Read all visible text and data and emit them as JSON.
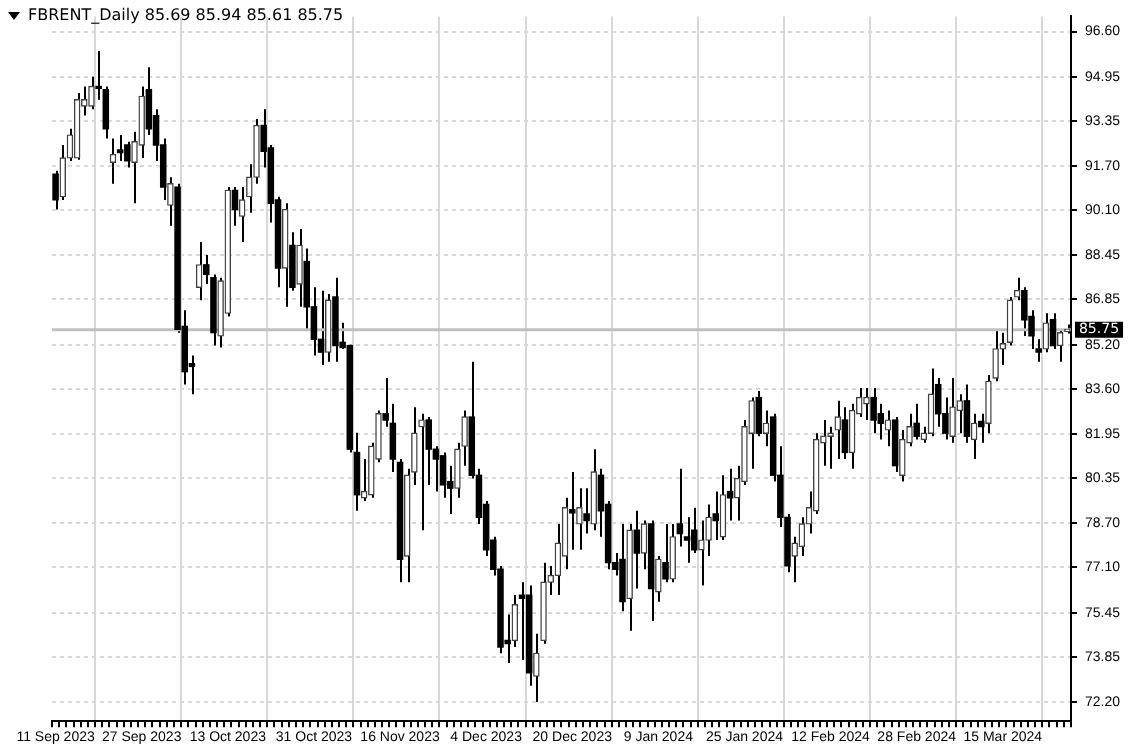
{
  "chart_data": {
    "type": "candlestick",
    "title": "FBRENT_Daily 85.69 85.94 85.61 85.75",
    "categories": [
      "11 Sep 2023",
      null,
      null,
      null,
      null,
      null,
      null,
      null,
      null,
      null,
      null,
      null,
      "27 Sep 2023",
      null,
      null,
      null,
      null,
      null,
      null,
      null,
      null,
      null,
      null,
      null,
      "13 Oct 2023",
      null,
      null,
      null,
      null,
      null,
      null,
      null,
      null,
      null,
      null,
      null,
      "31 Oct 2023",
      null,
      null,
      null,
      null,
      null,
      null,
      null,
      null,
      null,
      null,
      null,
      "16 Nov 2023",
      null,
      null,
      null,
      null,
      null,
      null,
      null,
      null,
      null,
      null,
      null,
      "4 Dec 2023",
      null,
      null,
      null,
      null,
      null,
      null,
      null,
      null,
      null,
      null,
      null,
      "20 Dec 2023",
      null,
      null,
      null,
      null,
      null,
      null,
      null,
      null,
      null,
      null,
      null,
      "9 Jan 2024",
      null,
      null,
      null,
      null,
      null,
      null,
      null,
      null,
      null,
      null,
      null,
      "25 Jan 2024",
      null,
      null,
      null,
      null,
      null,
      null,
      null,
      null,
      null,
      null,
      null,
      "12 Feb 2024",
      null,
      null,
      null,
      null,
      null,
      null,
      null,
      null,
      null,
      null,
      null,
      "28 Feb 2024",
      null,
      null,
      null,
      null,
      null,
      null,
      null,
      null,
      null,
      null,
      null,
      "15 Mar 2024",
      null,
      null,
      null,
      null,
      null,
      null,
      null,
      null,
      null
    ],
    "ohlc": [
      [
        91.41,
        91.53,
        90.12,
        90.47
      ],
      [
        90.59,
        92.47,
        90.47,
        92.0
      ],
      [
        92.0,
        93.06,
        91.89,
        92.83
      ],
      [
        92.0,
        94.36,
        91.93,
        94.12
      ],
      [
        93.89,
        94.6,
        93.54,
        94.12
      ],
      [
        93.89,
        94.95,
        93.77,
        94.6
      ],
      [
        94.6,
        95.89,
        94.12,
        94.53
      ],
      [
        94.48,
        94.6,
        92.71,
        93.06
      ],
      [
        91.84,
        92.71,
        91.06,
        92.12
      ],
      [
        92.29,
        92.83,
        91.89,
        92.19
      ],
      [
        92.47,
        92.59,
        91.65,
        91.89
      ],
      [
        91.84,
        92.95,
        90.35,
        92.59
      ],
      [
        92.47,
        94.6,
        92.0,
        94.24
      ],
      [
        94.48,
        95.3,
        92.83,
        93.06
      ],
      [
        93.54,
        93.77,
        91.89,
        92.47
      ],
      [
        92.47,
        92.71,
        90.47,
        90.94
      ],
      [
        90.28,
        91.3,
        89.53,
        91.06
      ],
      [
        90.94,
        91.06,
        85.64,
        85.76
      ],
      [
        85.87,
        86.46,
        83.75,
        84.22
      ],
      [
        84.51,
        84.81,
        83.4,
        84.41
      ],
      [
        87.29,
        88.94,
        86.82,
        88.11
      ],
      [
        88.11,
        88.47,
        87.41,
        87.76
      ],
      [
        87.64,
        87.76,
        85.17,
        85.64
      ],
      [
        85.52,
        87.64,
        85.1,
        87.52
      ],
      [
        86.35,
        90.94,
        86.23,
        90.82
      ],
      [
        90.82,
        90.94,
        89.53,
        90.12
      ],
      [
        89.88,
        90.94,
        88.94,
        90.47
      ],
      [
        90.59,
        91.77,
        90.0,
        91.3
      ],
      [
        91.3,
        93.42,
        91.06,
        93.18
      ],
      [
        93.18,
        93.77,
        91.65,
        92.24
      ],
      [
        92.36,
        92.47,
        89.65,
        90.35
      ],
      [
        90.47,
        90.59,
        87.29,
        87.99
      ],
      [
        87.99,
        90.35,
        86.58,
        90.12
      ],
      [
        88.82,
        89.29,
        87.17,
        87.29
      ],
      [
        87.41,
        89.41,
        86.58,
        88.82
      ],
      [
        88.23,
        88.7,
        85.76,
        86.58
      ],
      [
        86.58,
        87.29,
        84.81,
        85.4
      ],
      [
        85.4,
        87.17,
        84.46,
        84.93
      ],
      [
        84.93,
        87.05,
        84.58,
        86.82
      ],
      [
        86.94,
        87.64,
        84.58,
        85.17
      ],
      [
        85.29,
        86.0,
        85.05,
        85.1
      ],
      [
        85.17,
        85.2,
        81.28,
        81.4
      ],
      [
        81.28,
        82.0,
        79.16,
        79.74
      ],
      [
        79.63,
        81.04,
        79.51,
        79.86
      ],
      [
        79.74,
        81.63,
        79.63,
        81.51
      ],
      [
        81.04,
        82.81,
        80.92,
        82.69
      ],
      [
        82.69,
        83.99,
        82.22,
        82.46
      ],
      [
        82.34,
        83.05,
        80.57,
        81.04
      ],
      [
        80.92,
        81.04,
        76.56,
        77.39
      ],
      [
        77.51,
        80.69,
        76.56,
        80.45
      ],
      [
        80.57,
        82.93,
        80.1,
        81.98
      ],
      [
        82.22,
        82.69,
        78.45,
        82.46
      ],
      [
        82.46,
        82.57,
        80.1,
        81.4
      ],
      [
        81.4,
        81.51,
        79.86,
        81.04
      ],
      [
        81.16,
        81.28,
        79.63,
        80.1
      ],
      [
        80.22,
        80.8,
        79.04,
        79.98
      ],
      [
        79.98,
        81.63,
        79.63,
        81.4
      ],
      [
        81.51,
        82.81,
        80.8,
        82.57
      ],
      [
        82.57,
        84.58,
        80.33,
        80.45
      ],
      [
        80.45,
        80.69,
        78.68,
        78.92
      ],
      [
        79.39,
        79.51,
        77.51,
        77.74
      ],
      [
        78.09,
        78.21,
        76.8,
        77.03
      ],
      [
        77.03,
        77.15,
        73.97,
        74.2
      ],
      [
        74.44,
        75.38,
        73.62,
        74.32
      ],
      [
        74.44,
        76.09,
        74.2,
        75.74
      ],
      [
        76.09,
        76.56,
        73.73,
        75.97
      ],
      [
        76.09,
        76.44,
        72.79,
        73.26
      ],
      [
        73.14,
        74.68,
        72.2,
        73.97
      ],
      [
        74.44,
        77.27,
        74.32,
        76.56
      ],
      [
        76.56,
        77.15,
        76.09,
        76.8
      ],
      [
        76.8,
        78.68,
        76.09,
        77.98
      ],
      [
        77.51,
        79.63,
        77.03,
        79.27
      ],
      [
        79.2,
        80.57,
        77.74,
        79.08
      ],
      [
        78.68,
        79.98,
        77.74,
        79.27
      ],
      [
        79.04,
        79.98,
        78.33,
        78.8
      ],
      [
        78.68,
        81.4,
        78.45,
        80.57
      ],
      [
        80.45,
        80.69,
        78.21,
        79.16
      ],
      [
        79.39,
        79.51,
        77.03,
        77.27
      ],
      [
        77.27,
        77.62,
        76.8,
        77.03
      ],
      [
        77.39,
        78.68,
        75.5,
        75.85
      ],
      [
        75.97,
        78.68,
        74.79,
        78.45
      ],
      [
        78.45,
        79.16,
        76.33,
        77.62
      ],
      [
        77.62,
        78.8,
        77.03,
        78.68
      ],
      [
        78.68,
        78.8,
        75.15,
        76.33
      ],
      [
        76.21,
        77.51,
        75.85,
        77.39
      ],
      [
        77.27,
        78.68,
        76.56,
        76.68
      ],
      [
        76.68,
        78.68,
        76.56,
        78.21
      ],
      [
        78.68,
        80.69,
        77.86,
        78.33
      ],
      [
        78.21,
        78.92,
        77.27,
        78.09
      ],
      [
        78.45,
        79.27,
        77.62,
        77.74
      ],
      [
        77.74,
        78.8,
        76.44,
        78.09
      ],
      [
        78.09,
        79.39,
        77.51,
        78.92
      ],
      [
        79.04,
        79.86,
        78.09,
        78.8
      ],
      [
        78.21,
        80.45,
        78.09,
        79.74
      ],
      [
        79.86,
        80.69,
        78.8,
        79.63
      ],
      [
        79.63,
        80.8,
        78.8,
        80.33
      ],
      [
        80.22,
        82.46,
        80.1,
        82.22
      ],
      [
        81.98,
        83.28,
        80.69,
        83.16
      ],
      [
        83.28,
        83.52,
        81.87,
        81.98
      ],
      [
        81.98,
        82.81,
        81.51,
        82.34
      ],
      [
        82.57,
        82.69,
        80.22,
        80.45
      ],
      [
        80.45,
        81.51,
        78.57,
        78.92
      ],
      [
        78.92,
        79.04,
        76.92,
        77.15
      ],
      [
        77.51,
        78.21,
        76.56,
        77.98
      ],
      [
        77.86,
        78.92,
        77.51,
        78.68
      ],
      [
        78.68,
        79.86,
        78.33,
        79.27
      ],
      [
        79.16,
        81.98,
        79.04,
        81.75
      ],
      [
        81.63,
        82.46,
        80.8,
        81.87
      ],
      [
        81.87,
        82.22,
        80.69,
        81.98
      ],
      [
        82.1,
        83.16,
        81.04,
        82.57
      ],
      [
        82.46,
        82.93,
        81.04,
        81.28
      ],
      [
        81.28,
        83.05,
        80.69,
        82.81
      ],
      [
        82.69,
        83.63,
        82.57,
        83.28
      ],
      [
        83.05,
        83.63,
        82.46,
        83.28
      ],
      [
        83.28,
        83.63,
        81.98,
        82.46
      ],
      [
        82.69,
        83.05,
        81.75,
        82.34
      ],
      [
        82.1,
        82.81,
        81.51,
        82.46
      ],
      [
        82.46,
        82.57,
        80.57,
        80.8
      ],
      [
        80.45,
        82.1,
        80.22,
        81.75
      ],
      [
        81.63,
        82.69,
        81.51,
        82.22
      ],
      [
        82.34,
        83.05,
        81.75,
        81.87
      ],
      [
        81.75,
        82.22,
        81.63,
        81.98
      ],
      [
        81.98,
        84.34,
        81.87,
        83.4
      ],
      [
        83.75,
        83.99,
        82.22,
        82.69
      ],
      [
        82.69,
        83.28,
        81.75,
        81.98
      ],
      [
        81.87,
        83.99,
        81.63,
        82.93
      ],
      [
        82.81,
        83.4,
        81.98,
        83.16
      ],
      [
        83.16,
        83.75,
        81.63,
        81.87
      ],
      [
        81.75,
        82.69,
        81.04,
        82.34
      ],
      [
        82.41,
        82.69,
        81.63,
        82.22
      ],
      [
        82.34,
        84.1,
        81.98,
        83.87
      ],
      [
        83.99,
        85.76,
        83.87,
        85.05
      ],
      [
        85.05,
        85.64,
        84.46,
        85.24
      ],
      [
        85.29,
        86.94,
        85.17,
        86.82
      ],
      [
        86.94,
        87.64,
        86.82,
        87.17
      ],
      [
        87.17,
        87.29,
        85.52,
        86.11
      ],
      [
        86.23,
        86.46,
        85.05,
        85.52
      ],
      [
        85.05,
        85.4,
        84.58,
        84.93
      ],
      [
        85.05,
        86.35,
        84.93,
        85.99
      ],
      [
        86.11,
        86.35,
        85.05,
        85.17
      ],
      [
        85.17,
        85.76,
        84.58,
        85.64
      ],
      [
        85.69,
        85.94,
        85.61,
        85.75
      ]
    ],
    "ylim": [
      71.5,
      97.15
    ],
    "yticks": [
      {
        "value": 72.2,
        "label": "72.20"
      },
      {
        "value": 73.85,
        "label": "73.85"
      },
      {
        "value": 75.45,
        "label": "75.45"
      },
      {
        "value": 77.1,
        "label": "77.10"
      },
      {
        "value": 78.7,
        "label": "78.70"
      },
      {
        "value": 80.35,
        "label": "80.35"
      },
      {
        "value": 81.95,
        "label": "81.95"
      },
      {
        "value": 83.6,
        "label": "83.60"
      },
      {
        "value": 85.2,
        "label": "85.20"
      },
      {
        "value": 86.85,
        "label": "86.85"
      },
      {
        "value": 88.45,
        "label": "88.45"
      },
      {
        "value": 90.1,
        "label": "90.10"
      },
      {
        "value": 91.7,
        "label": "91.70"
      },
      {
        "value": 93.35,
        "label": "93.35"
      },
      {
        "value": 94.95,
        "label": "94.95"
      },
      {
        "value": 96.6,
        "label": "96.60"
      }
    ],
    "ref_lines": [
      {
        "axis": "y",
        "value": 85.75,
        "label": "85.75",
        "color": "#c0c0c0"
      }
    ],
    "grid": true
  }
}
